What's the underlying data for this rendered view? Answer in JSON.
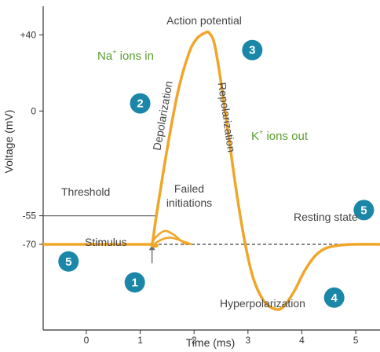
{
  "chart_data": {
    "type": "line",
    "title": "",
    "xlabel": "Time (ms)",
    "ylabel": "Voltage (mV)",
    "xlim": [
      -0.8,
      5.45
    ],
    "ylim": [
      -115,
      55
    ],
    "x_ticks": [
      0,
      1,
      2,
      3,
      4,
      5
    ],
    "y_ticks": [
      {
        "value": 40,
        "label": "+40"
      },
      {
        "value": 0,
        "label": "0"
      },
      {
        "value": -55,
        "label": "-55"
      },
      {
        "value": -70,
        "label": "-70"
      }
    ],
    "grid": false,
    "series": [
      {
        "name": "Action potential",
        "color": "#f0a62a",
        "points": [
          [
            -0.8,
            -70
          ],
          [
            1.15,
            -70
          ],
          [
            1.22,
            -70
          ],
          [
            1.3,
            -55
          ],
          [
            1.5,
            -20
          ],
          [
            1.7,
            10
          ],
          [
            1.9,
            30
          ],
          [
            2.05,
            38
          ],
          [
            2.2,
            41
          ],
          [
            2.28,
            41
          ],
          [
            2.38,
            35
          ],
          [
            2.5,
            15
          ],
          [
            2.65,
            -15
          ],
          [
            2.8,
            -45
          ],
          [
            2.95,
            -70
          ],
          [
            3.1,
            -88
          ],
          [
            3.3,
            -100
          ],
          [
            3.5,
            -104
          ],
          [
            3.65,
            -103
          ],
          [
            3.85,
            -95
          ],
          [
            4.05,
            -84
          ],
          [
            4.25,
            -76
          ],
          [
            4.45,
            -72
          ],
          [
            4.7,
            -70.5
          ],
          [
            4.95,
            -70
          ],
          [
            5.45,
            -70
          ]
        ]
      },
      {
        "name": "Failed initiation (large)",
        "color": "#f0a62a",
        "points": [
          [
            1.2,
            -70
          ],
          [
            1.3,
            -66
          ],
          [
            1.45,
            -63
          ],
          [
            1.6,
            -64.5
          ],
          [
            1.75,
            -68
          ],
          [
            1.85,
            -70
          ]
        ]
      },
      {
        "name": "Failed initiation (small)",
        "color": "#f0a62a",
        "points": [
          [
            1.25,
            -70
          ],
          [
            1.4,
            -67.5
          ],
          [
            1.55,
            -66.5
          ],
          [
            1.7,
            -67.5
          ],
          [
            1.85,
            -69
          ],
          [
            1.95,
            -70
          ]
        ]
      }
    ],
    "reference_lines": {
      "resting": {
        "y": -70,
        "color": "#6b6b6b",
        "dashed": true
      },
      "threshold": {
        "y": -55,
        "x_from": -0.8,
        "x_to": 1.32,
        "color": "#6b6b6b"
      },
      "stimulus_x": 1.22
    },
    "annotations": {
      "action_potential": "Action potential",
      "na_ions": "Na",
      "na_sup": "+",
      "na_suffix": " ions in",
      "k_ions": "K",
      "k_sup": "+",
      "k_suffix": " ions out",
      "depolarization": "Depolarization",
      "repolarization": "Repolarization",
      "threshold": "Threshold",
      "failed_line1": "Failed",
      "failed_line2": "initiations",
      "resting_state": "Resting state",
      "stimulus": "Stimulus",
      "hyperpolarization": "Hyperpolarization"
    },
    "badges": [
      {
        "number": "1",
        "x": 0.9,
        "y": -90
      },
      {
        "number": "2",
        "x": 1.0,
        "y": 4
      },
      {
        "number": "3",
        "x": 3.08,
        "y": 32
      },
      {
        "number": "4",
        "x": 4.6,
        "y": -98
      },
      {
        "number": "5",
        "x": 5.15,
        "y": -52
      },
      {
        "number": "5",
        "x": -0.33,
        "y": -79
      }
    ],
    "colors": {
      "curve": "#f0a62a",
      "badge": "#1b87a8",
      "ions_text": "#5a9e2f",
      "axis": "#333333"
    }
  }
}
